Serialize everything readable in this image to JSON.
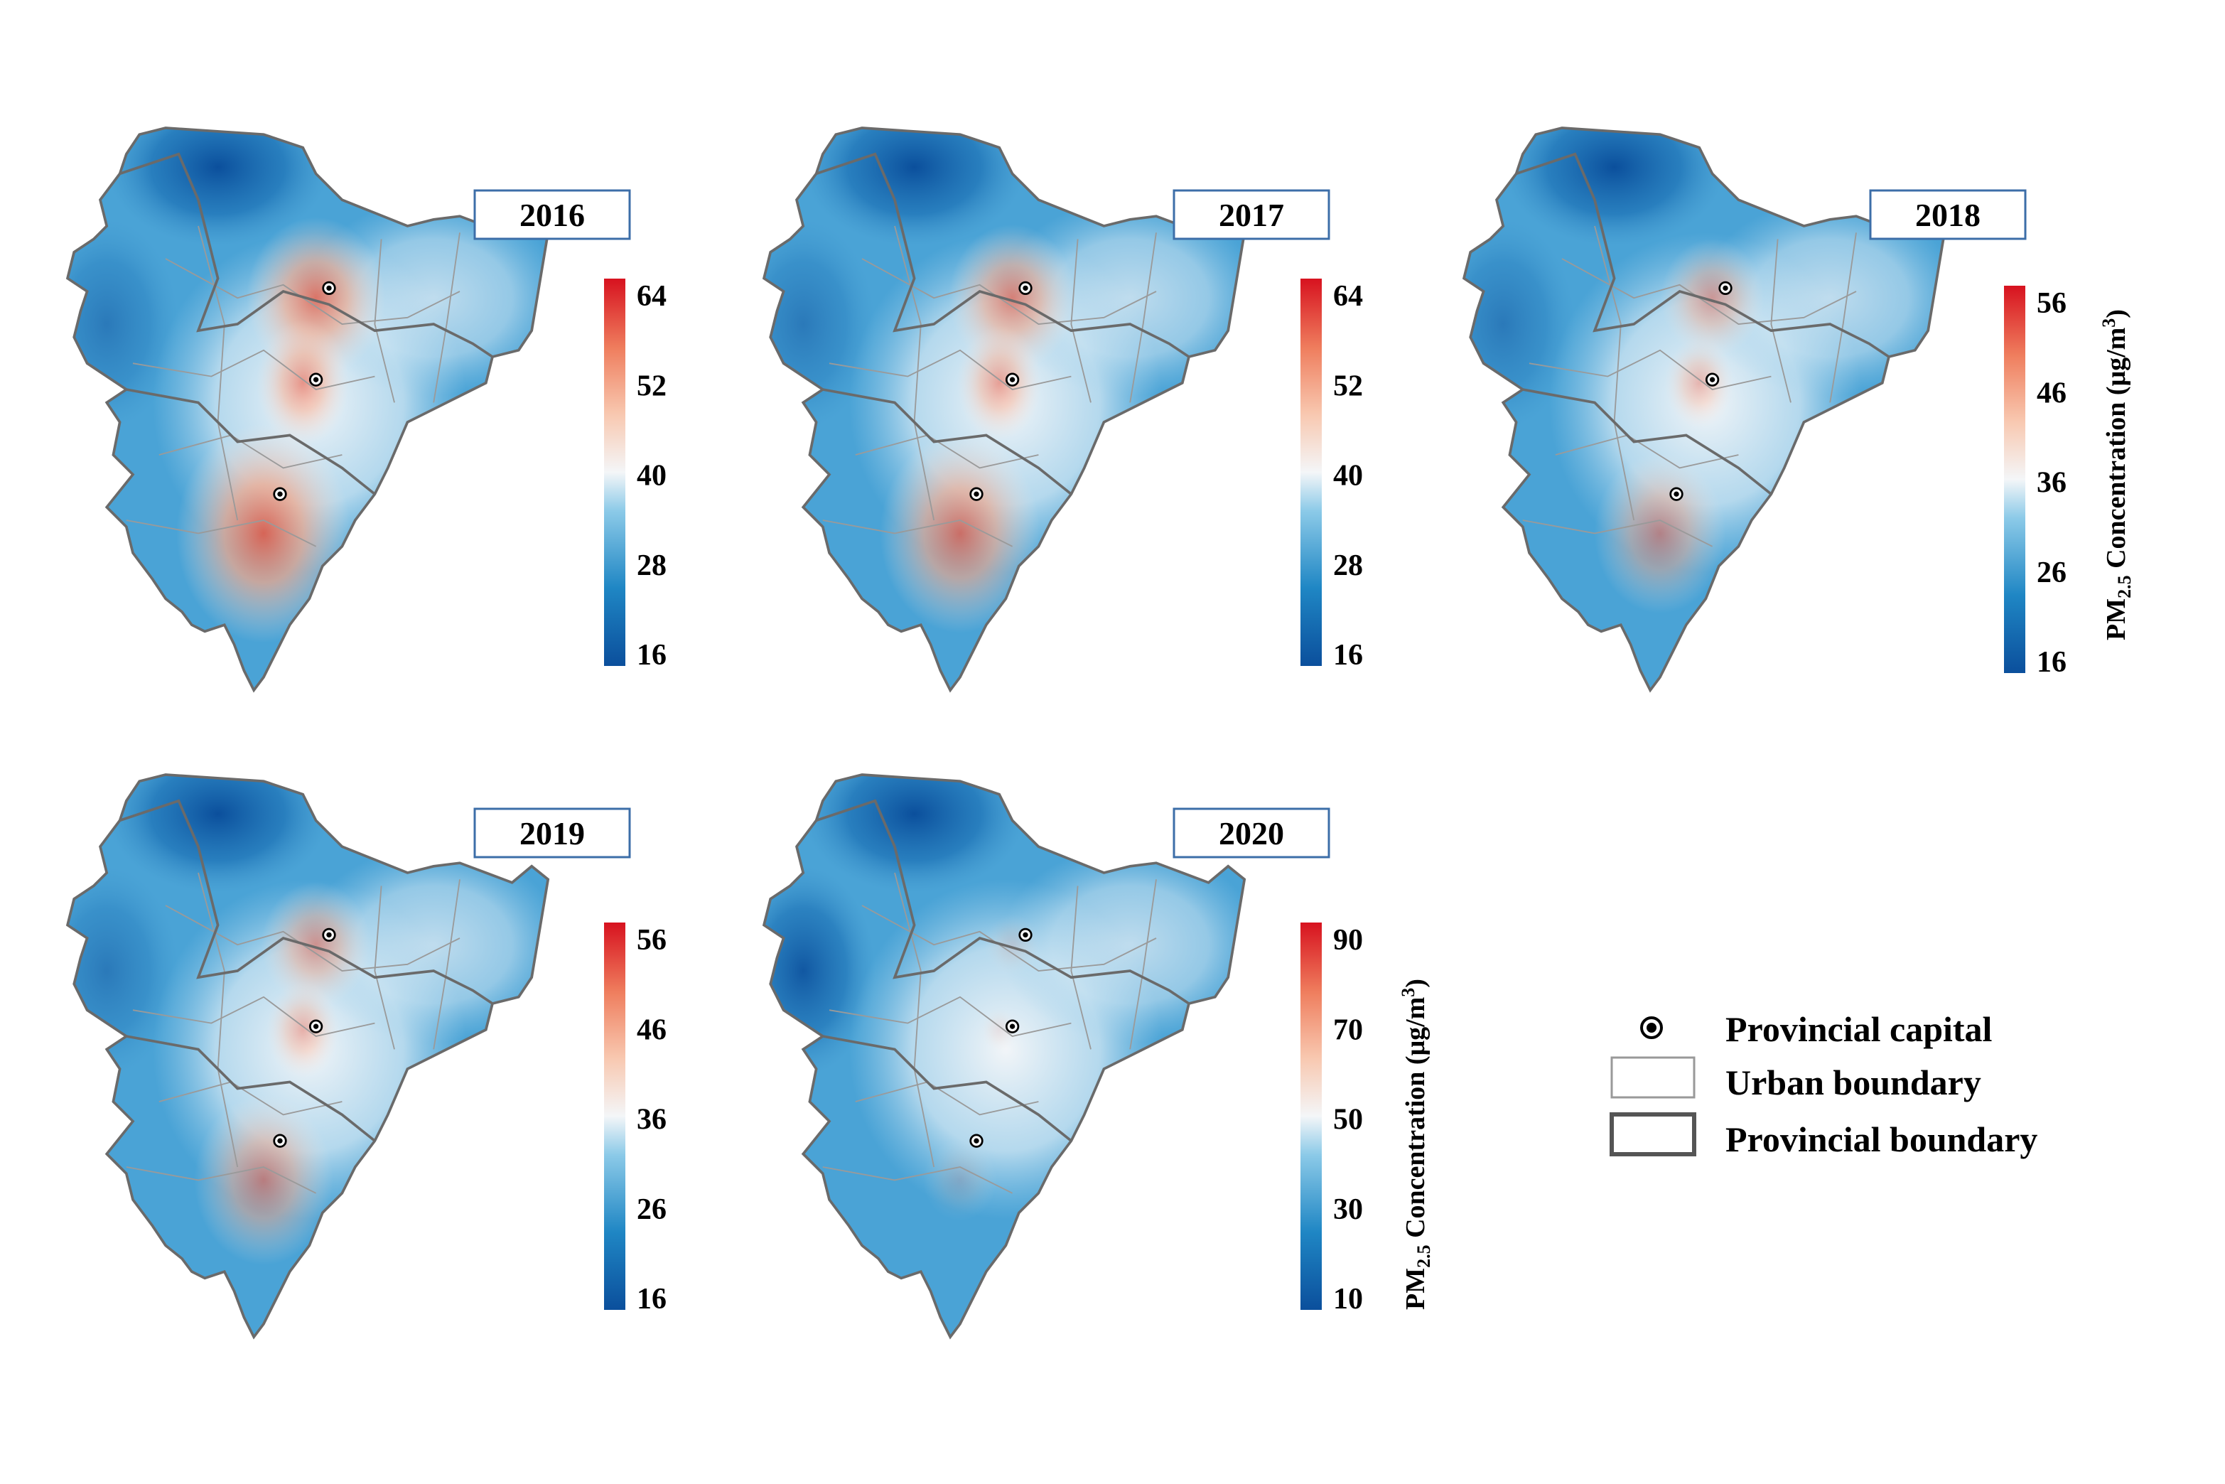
{
  "panels": [
    {
      "year": "2016",
      "ticks": [
        "64",
        "52",
        "40",
        "28",
        "16"
      ],
      "hot": 0.85,
      "show_title": false
    },
    {
      "year": "2017",
      "ticks": [
        "64",
        "52",
        "40",
        "28",
        "16"
      ],
      "hot": 0.75,
      "show_title": false
    },
    {
      "year": "2018",
      "ticks": [
        "56",
        "46",
        "36",
        "26",
        "16"
      ],
      "hot": 0.55,
      "show_title": true
    },
    {
      "year": "2019",
      "ticks": [
        "56",
        "46",
        "36",
        "26",
        "16"
      ],
      "hot": 0.6,
      "show_title": false
    },
    {
      "year": "2020",
      "ticks": [
        "90",
        "70",
        "50",
        "30",
        "10"
      ],
      "hot": 0.15,
      "show_title": true
    }
  ],
  "colorbar_title": {
    "prefix": "PM",
    "subscript": "2.5",
    "suffix": " Concentration (μg/m",
    "superscript": "3",
    "end": ")"
  },
  "legend": {
    "capital": "Provincial capital",
    "urban": "Urban boundary",
    "provincial": "Provincial boundary"
  },
  "colors": {
    "low": "#0b4f9c",
    "mid": "#f4f6f8",
    "high": "#d7121f"
  }
}
